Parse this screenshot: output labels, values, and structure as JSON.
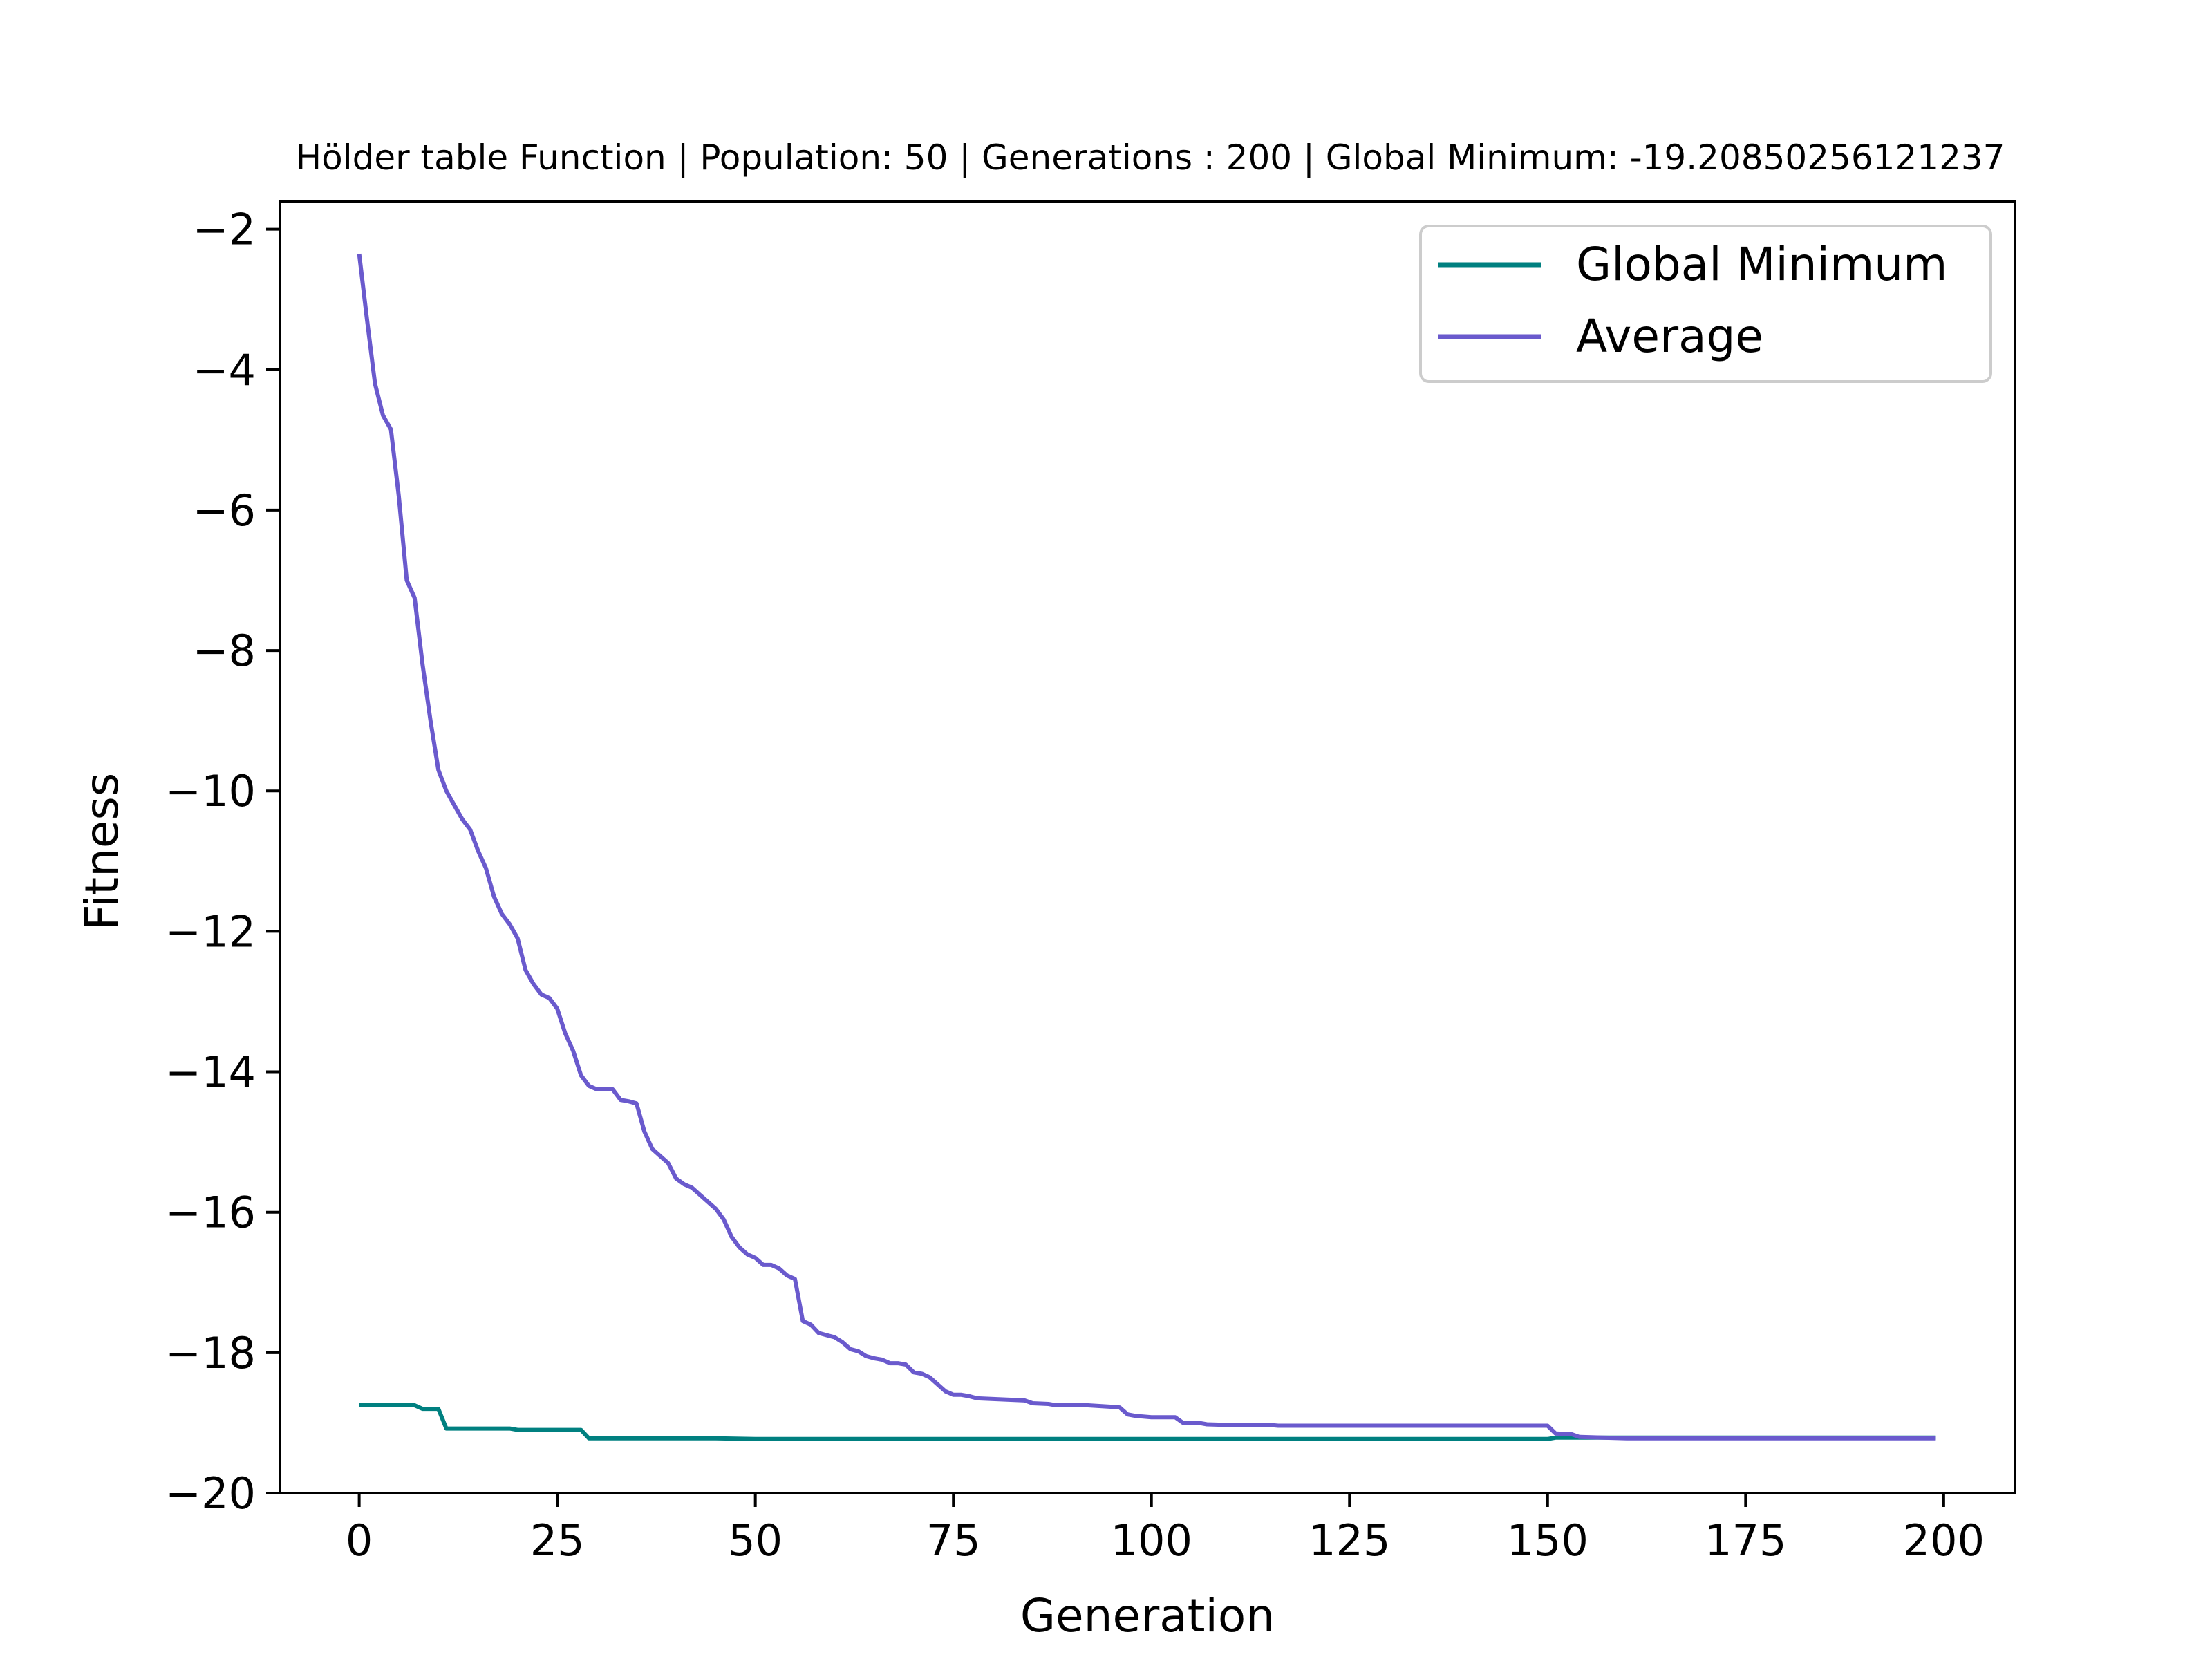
{
  "chart_data": {
    "type": "line",
    "title": "Hölder table Function | Population: 50 | Generations : 200 | Global Minimum: -19.20850256121237",
    "xlabel": "Generation",
    "ylabel": "Fitness",
    "xlim": [
      -10,
      209
    ],
    "ylim": [
      -20,
      -1.6
    ],
    "x_ticks": [
      0,
      25,
      50,
      75,
      100,
      125,
      150,
      175,
      200
    ],
    "y_ticks": [
      -2,
      -4,
      -6,
      -8,
      -10,
      -12,
      -14,
      -16,
      -18,
      -20
    ],
    "x_tick_labels": [
      "0",
      "25",
      "50",
      "75",
      "100",
      "125",
      "150",
      "175",
      "200"
    ],
    "y_tick_labels": [
      "−2",
      "−4",
      "−6",
      "−8",
      "−10",
      "−12",
      "−14",
      "−16",
      "−18",
      "−20"
    ],
    "grid": false,
    "legend_position": "upper-right",
    "series": [
      {
        "name": "Global Minimum",
        "color": "#008080",
        "points": [
          [
            0,
            -18.75
          ],
          [
            7,
            -18.75
          ],
          [
            8,
            -18.8
          ],
          [
            10,
            -18.8
          ],
          [
            11,
            -19.08
          ],
          [
            19,
            -19.08
          ],
          [
            20,
            -19.1
          ],
          [
            28,
            -19.1
          ],
          [
            29,
            -19.22
          ],
          [
            45,
            -19.22
          ],
          [
            50,
            -19.23
          ],
          [
            150,
            -19.23
          ],
          [
            151,
            -19.21
          ],
          [
            199,
            -19.21
          ]
        ]
      },
      {
        "name": "Average",
        "color": "#6a5acd",
        "points": [
          [
            0,
            -2.35
          ],
          [
            1,
            -3.3
          ],
          [
            2,
            -4.2
          ],
          [
            3,
            -4.65
          ],
          [
            4,
            -4.85
          ],
          [
            5,
            -5.8
          ],
          [
            6,
            -7.0
          ],
          [
            7,
            -7.25
          ],
          [
            8,
            -8.2
          ],
          [
            9,
            -9.0
          ],
          [
            10,
            -9.7
          ],
          [
            11,
            -10.0
          ],
          [
            12,
            -10.2
          ],
          [
            13,
            -10.4
          ],
          [
            14,
            -10.55
          ],
          [
            15,
            -10.85
          ],
          [
            16,
            -11.1
          ],
          [
            17,
            -11.5
          ],
          [
            18,
            -11.75
          ],
          [
            19,
            -11.9
          ],
          [
            20,
            -12.1
          ],
          [
            21,
            -12.55
          ],
          [
            22,
            -12.75
          ],
          [
            23,
            -12.9
          ],
          [
            24,
            -12.95
          ],
          [
            25,
            -13.1
          ],
          [
            26,
            -13.45
          ],
          [
            27,
            -13.7
          ],
          [
            28,
            -14.05
          ],
          [
            29,
            -14.2
          ],
          [
            30,
            -14.25
          ],
          [
            32,
            -14.25
          ],
          [
            33,
            -14.4
          ],
          [
            34,
            -14.42
          ],
          [
            35,
            -14.45
          ],
          [
            36,
            -14.85
          ],
          [
            37,
            -15.1
          ],
          [
            38,
            -15.2
          ],
          [
            39,
            -15.3
          ],
          [
            40,
            -15.52
          ],
          [
            41,
            -15.6
          ],
          [
            42,
            -15.65
          ],
          [
            43,
            -15.75
          ],
          [
            44,
            -15.85
          ],
          [
            45,
            -15.95
          ],
          [
            46,
            -16.1
          ],
          [
            47,
            -16.35
          ],
          [
            48,
            -16.5
          ],
          [
            49,
            -16.6
          ],
          [
            50,
            -16.65
          ],
          [
            51,
            -16.75
          ],
          [
            52,
            -16.75
          ],
          [
            53,
            -16.8
          ],
          [
            54,
            -16.9
          ],
          [
            55,
            -16.95
          ],
          [
            56,
            -17.55
          ],
          [
            57,
            -17.6
          ],
          [
            58,
            -17.72
          ],
          [
            59,
            -17.75
          ],
          [
            60,
            -17.78
          ],
          [
            61,
            -17.85
          ],
          [
            62,
            -17.95
          ],
          [
            63,
            -17.98
          ],
          [
            64,
            -18.05
          ],
          [
            65,
            -18.08
          ],
          [
            66,
            -18.1
          ],
          [
            67,
            -18.15
          ],
          [
            68,
            -18.15
          ],
          [
            69,
            -18.17
          ],
          [
            70,
            -18.28
          ],
          [
            71,
            -18.3
          ],
          [
            72,
            -18.35
          ],
          [
            73,
            -18.45
          ],
          [
            74,
            -18.55
          ],
          [
            75,
            -18.6
          ],
          [
            76,
            -18.6
          ],
          [
            77,
            -18.62
          ],
          [
            78,
            -18.65
          ],
          [
            80,
            -18.66
          ],
          [
            82,
            -18.67
          ],
          [
            84,
            -18.68
          ],
          [
            85,
            -18.72
          ],
          [
            87,
            -18.73
          ],
          [
            88,
            -18.75
          ],
          [
            92,
            -18.75
          ],
          [
            95,
            -18.77
          ],
          [
            96,
            -18.78
          ],
          [
            97,
            -18.88
          ],
          [
            98,
            -18.9
          ],
          [
            100,
            -18.92
          ],
          [
            103,
            -18.92
          ],
          [
            104,
            -19.0
          ],
          [
            106,
            -19.0
          ],
          [
            107,
            -19.02
          ],
          [
            110,
            -19.03
          ],
          [
            115,
            -19.03
          ],
          [
            116,
            -19.04
          ],
          [
            125,
            -19.04
          ],
          [
            150,
            -19.04
          ],
          [
            151,
            -19.15
          ],
          [
            153,
            -19.16
          ],
          [
            154,
            -19.2
          ],
          [
            157,
            -19.21
          ],
          [
            160,
            -19.22
          ],
          [
            199,
            -19.22
          ]
        ]
      }
    ]
  }
}
